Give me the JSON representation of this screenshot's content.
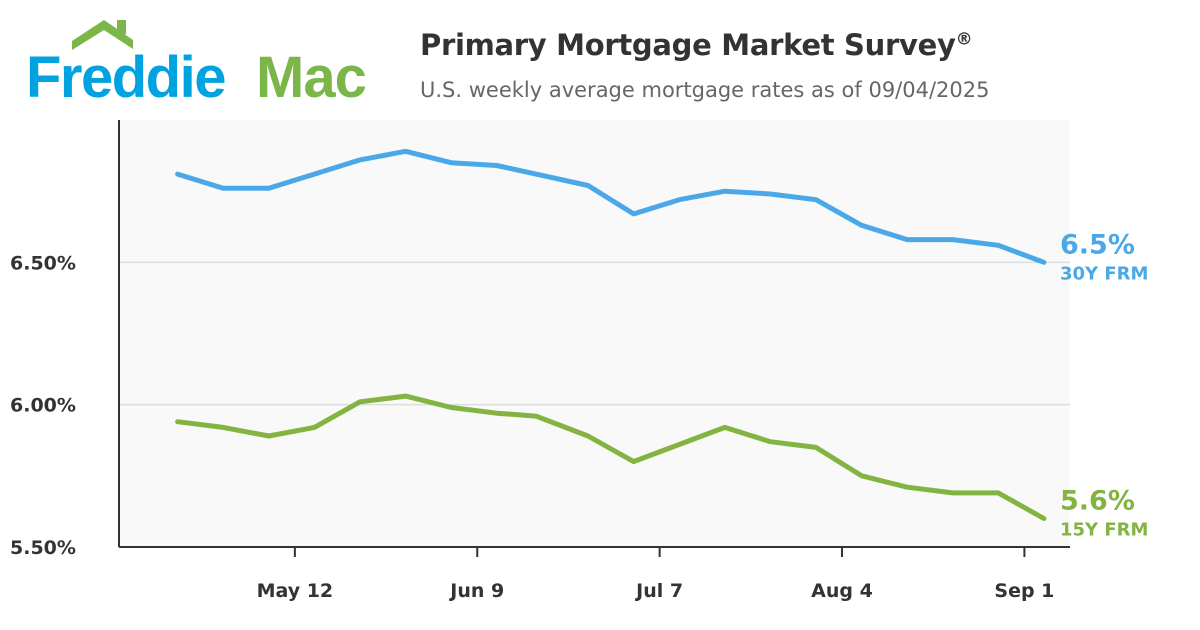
{
  "header": {
    "logo_text": "FreddieMac",
    "logo_word1": "Freddie",
    "logo_word2": "Mac",
    "title": "Primary Mortgage Market Survey",
    "title_mark": "®",
    "subtitle": "U.S. weekly average mortgage rates as of 09/04/2025"
  },
  "colors": {
    "brand_blue": "#00a3e0",
    "brand_green": "#7ab648",
    "series_30y": "#4aa8e8",
    "series_15y": "#83b441",
    "plot_bg": "#f9f9f9"
  },
  "chart_data": {
    "type": "line",
    "title": "Primary Mortgage Market Survey",
    "subtitle": "U.S. weekly average mortgage rates as of 09/04/2025",
    "x": [
      "2025-04-24",
      "2025-05-01",
      "2025-05-08",
      "2025-05-15",
      "2025-05-22",
      "2025-05-29",
      "2025-06-05",
      "2025-06-12",
      "2025-06-18",
      "2025-06-26",
      "2025-07-03",
      "2025-07-10",
      "2025-07-17",
      "2025-07-24",
      "2025-07-31",
      "2025-08-07",
      "2025-08-14",
      "2025-08-21",
      "2025-08-28",
      "2025-09-04"
    ],
    "series": [
      {
        "name": "30Y FRM",
        "end_label": "6.5%",
        "color": "#4aa8e8",
        "values": [
          6.81,
          6.76,
          6.76,
          6.81,
          6.86,
          6.89,
          6.85,
          6.84,
          6.81,
          6.77,
          6.67,
          6.72,
          6.75,
          6.74,
          6.72,
          6.63,
          6.58,
          6.58,
          6.56,
          6.5
        ]
      },
      {
        "name": "15Y FRM",
        "end_label": "5.6%",
        "color": "#83b441",
        "values": [
          5.94,
          5.92,
          5.89,
          5.92,
          6.01,
          6.03,
          5.99,
          5.97,
          5.96,
          5.89,
          5.8,
          5.86,
          5.92,
          5.87,
          5.85,
          5.75,
          5.71,
          5.69,
          5.69,
          5.6
        ]
      }
    ],
    "xticks": [
      {
        "date": "2025-05-12",
        "label": "May 12"
      },
      {
        "date": "2025-06-09",
        "label": "Jun 9"
      },
      {
        "date": "2025-07-07",
        "label": "Jul 7"
      },
      {
        "date": "2025-08-04",
        "label": "Aug 4"
      },
      {
        "date": "2025-09-01",
        "label": "Sep 1"
      }
    ],
    "yticks": [
      {
        "value": 5.5,
        "label": "5.50%"
      },
      {
        "value": 6.0,
        "label": "6.00%"
      },
      {
        "value": 6.5,
        "label": "6.50%"
      }
    ],
    "xlim": [
      "2025-04-15",
      "2025-09-08"
    ],
    "ylim": [
      5.5,
      7.0
    ],
    "grid": true,
    "legend": "end-of-line labels"
  }
}
